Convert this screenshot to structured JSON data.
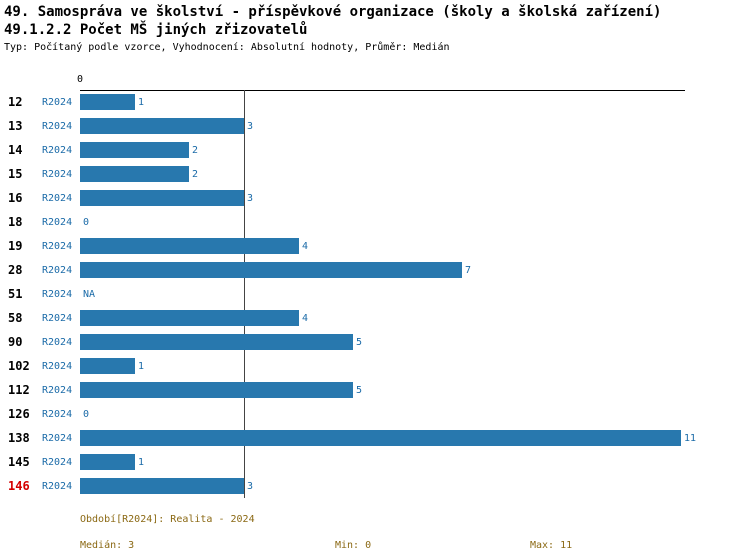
{
  "chart_data": {
    "type": "bar",
    "orientation": "horizontal",
    "title": "49. Samospráva ve školství - příspěvkové organizace (školy a školská zařízení)",
    "subtitle": "49.1.2.2 Počet MŠ jiných zřizovatelů",
    "meta": "Typ: Počítaný podle vzorce, Vyhodnocení: Absolutní hodnoty, Průměr: Medián",
    "categories": [
      "12",
      "13",
      "14",
      "15",
      "16",
      "18",
      "19",
      "28",
      "51",
      "58",
      "90",
      "102",
      "112",
      "126",
      "138",
      "145",
      "146"
    ],
    "series": [
      {
        "name": "R2024",
        "values": [
          1,
          3,
          2,
          2,
          3,
          0,
          4,
          7,
          null,
          4,
          5,
          1,
          5,
          0,
          11,
          1,
          3
        ],
        "value_labels": [
          "1",
          "3",
          "2",
          "2",
          "3",
          "0",
          "4",
          "7",
          "NA",
          "4",
          "5",
          "1",
          "5",
          "0",
          "11",
          "1",
          "3"
        ]
      }
    ],
    "xlim": [
      0,
      11
    ],
    "x_zero_tick": "0",
    "median": 3,
    "highlight_category": "146",
    "legend_position": "none",
    "grid": "single vertical line at median"
  },
  "colors": {
    "bar": "#2878ae",
    "series_text": "#1b6ba8",
    "highlight_text": "#d40000",
    "footer_text": "#8B6914",
    "axis": "#000000"
  },
  "footer": {
    "period": "Období[R2024]: Realita - 2024",
    "median": "Medián: 3",
    "min": "Min: 0",
    "max": "Max: 11"
  }
}
